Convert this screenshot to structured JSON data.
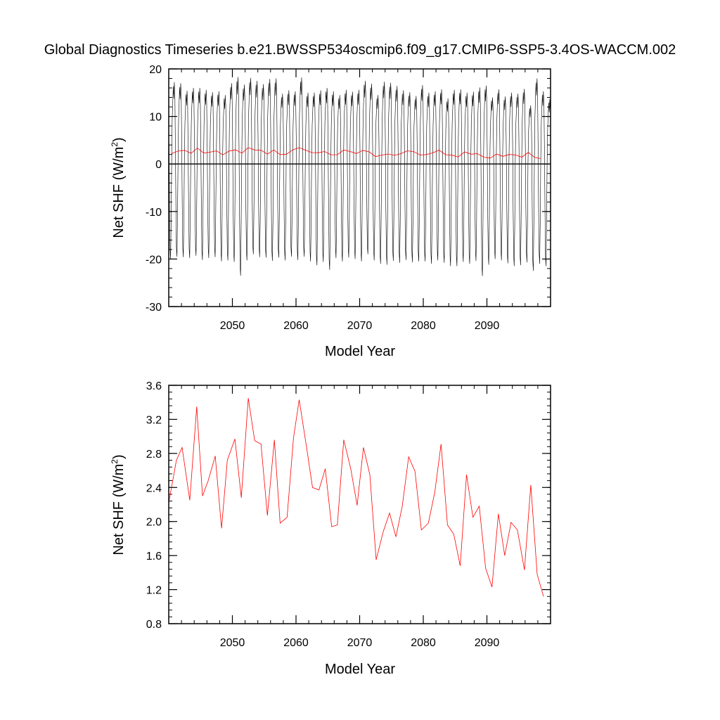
{
  "title": "Global Diagnostics Timeseries b.e21.BWSSP534oscmip6.f09_g17.CMIP6-SSP5-3.4OS-WACCM.002",
  "colors": {
    "monthly": "#000000",
    "annual": "#ff0000",
    "zero_line": "#000000"
  },
  "chart_data": [
    {
      "type": "line",
      "xlabel": "Model Year",
      "ylabel": "Net SHF (W/m",
      "ylabel_sup": "2",
      "ylabel_close": ")",
      "xlim": [
        2040,
        2100
      ],
      "ylim": [
        -30,
        20
      ],
      "xticks": [
        2050,
        2060,
        2070,
        2080,
        2090
      ],
      "yticks": [
        -30,
        -20,
        -10,
        0,
        10,
        20
      ],
      "reference_line": 0,
      "series": [
        {
          "key": "monthly",
          "kind": "monthly-seasonal-cycle",
          "start_year": 2040,
          "annual_max": [
            17.2,
            17.0,
            15.4,
            16.0,
            16.0,
            15.6,
            15.1,
            15.3,
            14.5,
            17.0,
            18.3,
            16.7,
            18.1,
            17.5,
            16.8,
            17.9,
            18.0,
            14.8,
            15.5,
            15.3,
            18.2,
            15.0,
            15.0,
            15.5,
            16.0,
            15.3,
            14.5,
            15.6,
            15.2,
            15.6,
            17.5,
            16.9,
            14.5,
            17.3,
            17.1,
            16.4,
            15.5,
            15.1,
            14.3,
            16.6,
            15.0,
            15.3,
            15.7,
            13.8,
            15.6,
            15.7,
            15.0,
            15.2,
            16.1,
            16.5,
            14.0,
            15.7,
            14.2,
            15.0,
            14.8,
            15.8,
            12.3,
            18.0,
            15.3,
            13.6
          ],
          "annual_min": [
            -20.0,
            -19.5,
            -19.6,
            -19.8,
            -19.3,
            -20.2,
            -19.8,
            -19.6,
            -20.5,
            -20.3,
            -20.6,
            -23.5,
            -20.3,
            -19.0,
            -19.6,
            -19.7,
            -20.4,
            -19.7,
            -20.3,
            -19.5,
            -20.2,
            -19.5,
            -20.5,
            -21.3,
            -20.6,
            -22.3,
            -19.8,
            -20.5,
            -19.7,
            -20.0,
            -20.5,
            -19.0,
            -20.3,
            -21.0,
            -21.2,
            -20.4,
            -20.8,
            -20.2,
            -20.7,
            -20.5,
            -20.5,
            -21.0,
            -20.3,
            -20.8,
            -21.5,
            -21.5,
            -20.6,
            -21.0,
            -20.4,
            -23.6,
            -21.2,
            -20.0,
            -20.3,
            -20.9,
            -21.5,
            -21.3,
            -20.7,
            -22.5,
            -21.0,
            -21.5
          ]
        },
        {
          "key": "annual",
          "kind": "annual-mean",
          "x": [
            2040.5,
            2041.5,
            2042.5,
            2043.5,
            2044.5,
            2045.5,
            2046.5,
            2047.5,
            2048.5,
            2049.5,
            2050.5,
            2051.5,
            2052.5,
            2053.5,
            2054.5,
            2055.5,
            2056.5,
            2057.5,
            2058.5,
            2059.5,
            2060.5,
            2061.5,
            2062.5,
            2063.5,
            2064.5,
            2065.5,
            2066.5,
            2067.5,
            2068.5,
            2069.5,
            2070.5,
            2071.5,
            2072.5,
            2073.5,
            2074.5,
            2075.5,
            2076.5,
            2077.5,
            2078.5,
            2079.5,
            2080.5,
            2081.5,
            2082.5,
            2083.5,
            2084.5,
            2085.5,
            2086.5,
            2087.5,
            2088.5,
            2089.5,
            2090.5,
            2091.5,
            2092.5,
            2093.5,
            2094.5,
            2095.5,
            2096.5,
            2097.5,
            2098.5
          ],
          "values": [
            2.22,
            2.72,
            2.87,
            2.25,
            3.35,
            2.3,
            2.48,
            2.77,
            1.92,
            2.72,
            2.97,
            2.28,
            3.45,
            2.95,
            2.91,
            2.07,
            2.96,
            1.98,
            2.05,
            2.98,
            3.43,
            2.9,
            2.4,
            2.37,
            2.62,
            1.94,
            1.96,
            2.96,
            2.62,
            2.19,
            2.87,
            2.55,
            1.55,
            1.88,
            2.1,
            1.82,
            2.18,
            2.76,
            2.59,
            1.9,
            1.98,
            2.34,
            2.91,
            1.96,
            1.85,
            1.48,
            2.55,
            2.05,
            2.18,
            1.45,
            1.23,
            2.09,
            1.6,
            1.99,
            1.9,
            1.43,
            2.43,
            1.38,
            1.12
          ]
        }
      ]
    },
    {
      "type": "line",
      "xlabel": "Model Year",
      "ylabel": "Net SHF (W/m",
      "ylabel_sup": "2",
      "ylabel_close": ")",
      "xlim": [
        2040,
        2100
      ],
      "ylim": [
        0.8,
        3.6
      ],
      "xticks": [
        2050,
        2060,
        2070,
        2080,
        2090
      ],
      "yticks": [
        "0.8",
        "1.2",
        "1.6",
        "2.0",
        "2.4",
        "2.8",
        "3.2",
        "3.6"
      ],
      "series": [
        {
          "key": "annual",
          "kind": "annual-mean",
          "x": [
            2040.0,
            2041.2,
            2042.1,
            2043.3,
            2044.4,
            2045.3,
            2046.2,
            2047.3,
            2048.3,
            2049.2,
            2050.4,
            2051.4,
            2052.5,
            2053.5,
            2054.5,
            2055.5,
            2056.6,
            2057.5,
            2058.6,
            2059.6,
            2060.5,
            2061.6,
            2062.6,
            2063.6,
            2064.6,
            2065.6,
            2066.5,
            2067.5,
            2068.6,
            2069.6,
            2070.6,
            2071.6,
            2072.6,
            2073.7,
            2074.7,
            2075.7,
            2076.7,
            2077.7,
            2078.7,
            2079.7,
            2080.8,
            2081.8,
            2082.8,
            2083.8,
            2084.8,
            2085.8,
            2086.8,
            2087.8,
            2088.8,
            2089.8,
            2090.8,
            2091.8,
            2092.8,
            2093.8,
            2094.8,
            2095.9,
            2096.9,
            2097.9,
            2098.9
          ],
          "values": [
            2.22,
            2.72,
            2.87,
            2.25,
            3.35,
            2.3,
            2.48,
            2.77,
            1.92,
            2.72,
            2.97,
            2.28,
            3.45,
            2.95,
            2.91,
            2.07,
            2.96,
            1.98,
            2.05,
            2.98,
            3.43,
            2.9,
            2.4,
            2.37,
            2.62,
            1.94,
            1.96,
            2.96,
            2.62,
            2.19,
            2.87,
            2.55,
            1.55,
            1.88,
            2.1,
            1.82,
            2.18,
            2.76,
            2.59,
            1.9,
            1.98,
            2.34,
            2.91,
            1.96,
            1.85,
            1.48,
            2.55,
            2.05,
            2.18,
            1.45,
            1.23,
            2.09,
            1.6,
            1.99,
            1.9,
            1.43,
            2.43,
            1.38,
            1.12
          ]
        }
      ]
    }
  ]
}
